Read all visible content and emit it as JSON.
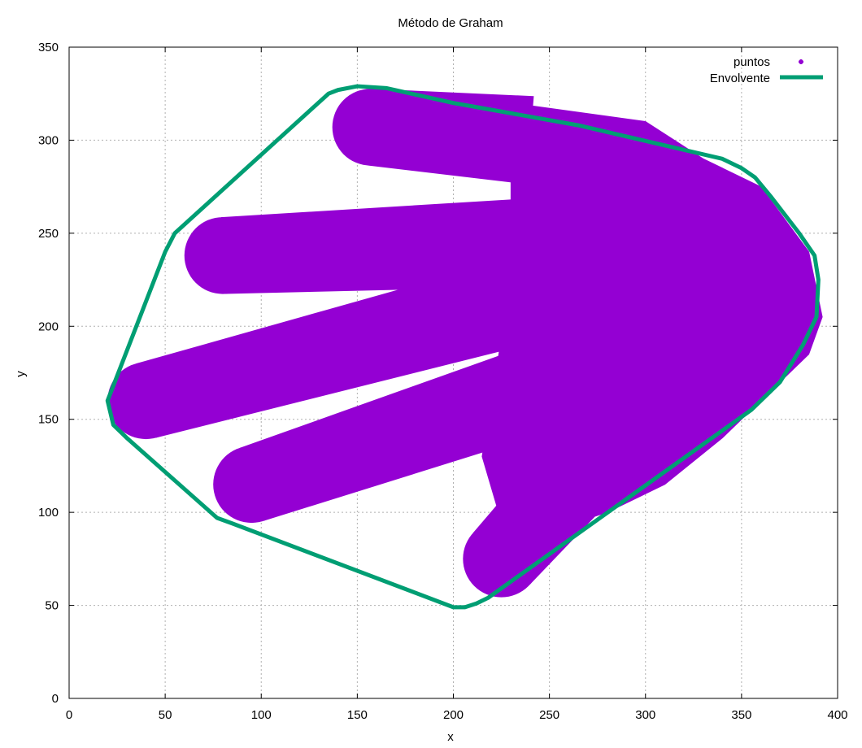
{
  "chart_data": {
    "type": "scatter",
    "title": "Método de Graham",
    "xlabel": "x",
    "ylabel": "y",
    "xlim": [
      0,
      400
    ],
    "ylim": [
      0,
      350
    ],
    "xticks": [
      0,
      50,
      100,
      150,
      200,
      250,
      300,
      350,
      400
    ],
    "yticks": [
      0,
      50,
      100,
      150,
      200,
      250,
      300,
      350
    ],
    "grid": true,
    "legend_position": "top-right",
    "colors": {
      "puntos": "#9400d3",
      "envolvente": "#009e73"
    },
    "series": [
      {
        "name": "puntos",
        "kind": "points",
        "shape": "hand",
        "palm_outline": [
          [
            230,
            320
          ],
          [
            300,
            310
          ],
          [
            330,
            290
          ],
          [
            360,
            275
          ],
          [
            385,
            240
          ],
          [
            392,
            205
          ],
          [
            385,
            185
          ],
          [
            365,
            165
          ],
          [
            340,
            140
          ],
          [
            310,
            115
          ],
          [
            280,
            100
          ],
          [
            250,
            90
          ],
          [
            225,
            85
          ],
          [
            225,
            95
          ],
          [
            215,
            130
          ],
          [
            230,
            225
          ],
          [
            230,
            270
          ]
        ],
        "fingers": [
          {
            "start": [
              157,
              307
            ],
            "end": [
              240,
              300
            ],
            "width": [
              40,
              46
            ]
          },
          {
            "start": [
              80,
              238
            ],
            "end": [
              240,
              245
            ],
            "width": [
              40,
              46
            ]
          },
          {
            "start": [
              40,
              160
            ],
            "end": [
              240,
              215
            ],
            "width": [
              40,
              46
            ]
          },
          {
            "start": [
              95,
              115
            ],
            "end": [
              240,
              165
            ],
            "width": [
              40,
              46
            ]
          },
          {
            "start": [
              225,
              75
            ],
            "end": [
              295,
              155
            ],
            "width": [
              40,
              46
            ]
          }
        ]
      },
      {
        "name": "Envolvente",
        "kind": "line",
        "points": [
          [
            20,
            160
          ],
          [
            23,
            147
          ],
          [
            30,
            140
          ],
          [
            77,
            97
          ],
          [
            85,
            94
          ],
          [
            200,
            49
          ],
          [
            206,
            49
          ],
          [
            212,
            51
          ],
          [
            218,
            54
          ],
          [
            355,
            155
          ],
          [
            370,
            170
          ],
          [
            382,
            190
          ],
          [
            389,
            205
          ],
          [
            390,
            225
          ],
          [
            388,
            238
          ],
          [
            380,
            250
          ],
          [
            365,
            270
          ],
          [
            357,
            280
          ],
          [
            350,
            285
          ],
          [
            340,
            290
          ],
          [
            265,
            308
          ],
          [
            200,
            320
          ],
          [
            165,
            328
          ],
          [
            150,
            329
          ],
          [
            140,
            327
          ],
          [
            135,
            325
          ],
          [
            55,
            250
          ],
          [
            50,
            240
          ],
          [
            20,
            160
          ]
        ]
      }
    ]
  }
}
